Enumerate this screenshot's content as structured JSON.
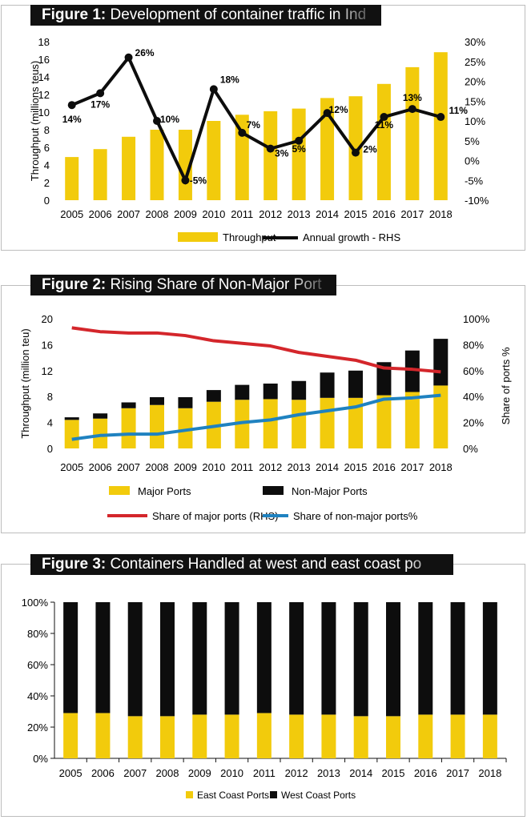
{
  "colors": {
    "yellow": "#f2cb0c",
    "black": "#0d0d0d",
    "red": "#d4262b",
    "blue": "#1f82c0"
  },
  "chart_data": [
    {
      "type": "bar",
      "figure_label": "Figure 1:",
      "title": "Development of container traffic in Ind",
      "ylabel": "Throughput (millions teus)",
      "categories": [
        "2005",
        "2006",
        "2007",
        "2008",
        "2009",
        "2010",
        "2011",
        "2012",
        "2013",
        "2014",
        "2015",
        "2016",
        "2017",
        "2018"
      ],
      "ylim": [
        0,
        18
      ],
      "y_ticks": [
        "0",
        "2",
        "4",
        "6",
        "8",
        "10",
        "12",
        "14",
        "16",
        "18"
      ],
      "y2lim": [
        -10,
        30
      ],
      "y2_ticks": [
        "-10%",
        "-5%",
        "0%",
        "5%",
        "10%",
        "15%",
        "20%",
        "25%",
        "30%"
      ],
      "series": [
        {
          "name": "Throughput",
          "type": "bar",
          "color": "yellow",
          "values": [
            4.9,
            5.8,
            7.2,
            8.0,
            8.0,
            9.0,
            9.7,
            10.1,
            10.4,
            11.6,
            11.8,
            13.2,
            15.1,
            16.8
          ]
        },
        {
          "name": "Annual growth - RHS",
          "type": "line",
          "axis": "right",
          "color": "black",
          "values": [
            14,
            17,
            26,
            10,
            -5,
            18,
            7,
            3,
            5,
            12,
            2,
            11,
            13,
            11
          ],
          "labels": [
            "14%",
            "17%",
            "26%",
            "10%",
            "-5%",
            "18%",
            "7%",
            "3%",
            "5%",
            "12%",
            "2%",
            "11%",
            "13%",
            "11%"
          ]
        }
      ]
    },
    {
      "type": "bar",
      "figure_label": "Figure 2:",
      "title": "Rising Share of Non-Major Port",
      "ylabel": "Throughput (million teu)",
      "y2label": "Share of ports %",
      "categories": [
        "2005",
        "2006",
        "2007",
        "2008",
        "2009",
        "2010",
        "2011",
        "2012",
        "2013",
        "2014",
        "2015",
        "2016",
        "2017",
        "2018"
      ],
      "ylim": [
        0,
        20
      ],
      "y_ticks": [
        "0",
        "4",
        "8",
        "12",
        "16",
        "20"
      ],
      "y2lim": [
        0,
        100
      ],
      "y2_ticks": [
        "0%",
        "20%",
        "40%",
        "60%",
        "80%",
        "100%"
      ],
      "series": [
        {
          "name": "Major Ports",
          "type": "bar",
          "stack": "ports",
          "color": "yellow",
          "values": [
            4.4,
            4.6,
            6.2,
            6.7,
            6.2,
            7.2,
            7.5,
            7.6,
            7.5,
            7.8,
            7.8,
            8.2,
            8.7,
            9.7
          ]
        },
        {
          "name": "Non-Major Ports",
          "type": "bar",
          "stack": "ports",
          "color": "black",
          "values": [
            0.4,
            0.8,
            0.9,
            1.2,
            1.7,
            1.8,
            2.3,
            2.4,
            2.9,
            3.9,
            4.2,
            5.1,
            6.4,
            7.2
          ]
        },
        {
          "name": "Share of major ports (RHS)",
          "type": "line",
          "axis": "right",
          "color": "red",
          "values": [
            93,
            90,
            89,
            89,
            87,
            83,
            81,
            79,
            74,
            71,
            68,
            62,
            61,
            59
          ]
        },
        {
          "name": "Share of non-major ports%",
          "type": "line",
          "axis": "right",
          "color": "blue",
          "values": [
            7,
            10,
            11,
            11,
            14,
            17,
            20,
            22,
            26,
            29,
            32,
            38,
            39,
            41
          ]
        }
      ]
    },
    {
      "type": "bar",
      "figure_label": "Figure 3:",
      "title": "Containers Handled at west and east coast po",
      "categories": [
        "2005",
        "2006",
        "2007",
        "2008",
        "2009",
        "2010",
        "2011",
        "2012",
        "2013",
        "2014",
        "2015",
        "2016",
        "2017",
        "2018"
      ],
      "ylim": [
        0,
        100
      ],
      "y_ticks": [
        "0%",
        "20%",
        "40%",
        "60%",
        "80%",
        "100%"
      ],
      "series": [
        {
          "name": "East Coast Ports",
          "type": "bar",
          "stack": "coast",
          "color": "yellow",
          "values": [
            29,
            29,
            27,
            27,
            28,
            28,
            29,
            28,
            28,
            27,
            27,
            28,
            28,
            28
          ]
        },
        {
          "name": "West Coast Ports",
          "type": "bar",
          "stack": "coast",
          "color": "black",
          "values": [
            71,
            71,
            73,
            73,
            72,
            72,
            71,
            72,
            72,
            73,
            73,
            72,
            72,
            72
          ]
        }
      ]
    }
  ]
}
